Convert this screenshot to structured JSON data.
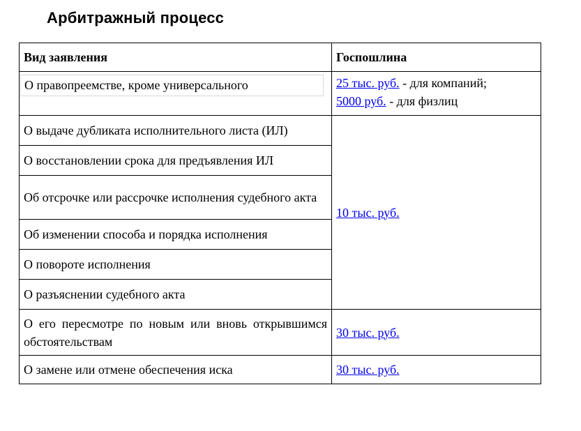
{
  "page": {
    "title": "Арбитражный процесс"
  },
  "table": {
    "headers": [
      "Вид заявления",
      "Госпошлина"
    ],
    "rows": [
      {
        "label": "О правопреемстве, кроме универсального",
        "fee_lines": [
          {
            "link": "25 тыс. руб.",
            "text": " - для компаний;"
          },
          {
            "link": "5000 руб.",
            "text": " - для физлиц"
          }
        ]
      },
      {
        "label": "О выдаче дубликата исполнительного листа (ИЛ)",
        "fee_link": "10 тыс. руб.",
        "fee_rowspan": 6
      },
      {
        "label": "О восстановлении срока для предъявления ИЛ"
      },
      {
        "label": "Об отсрочке или рассрочке исполнения судебного акта"
      },
      {
        "label": "Об изменении способа и порядка исполнения"
      },
      {
        "label": "О повороте исполнения"
      },
      {
        "label": "О разъяснении судебного акта"
      },
      {
        "label": "О его пересмотре по новым или вновь открывшимся обстоятельствам",
        "fee_link": "30 тыс. руб."
      },
      {
        "label": "О замене или отмене обеспечения иска",
        "fee_link": "30 тыс. руб."
      }
    ]
  },
  "colors": {
    "link_blue": "#0000EE",
    "table_border": "#000000",
    "highlight_border": "#d9d9d9"
  }
}
